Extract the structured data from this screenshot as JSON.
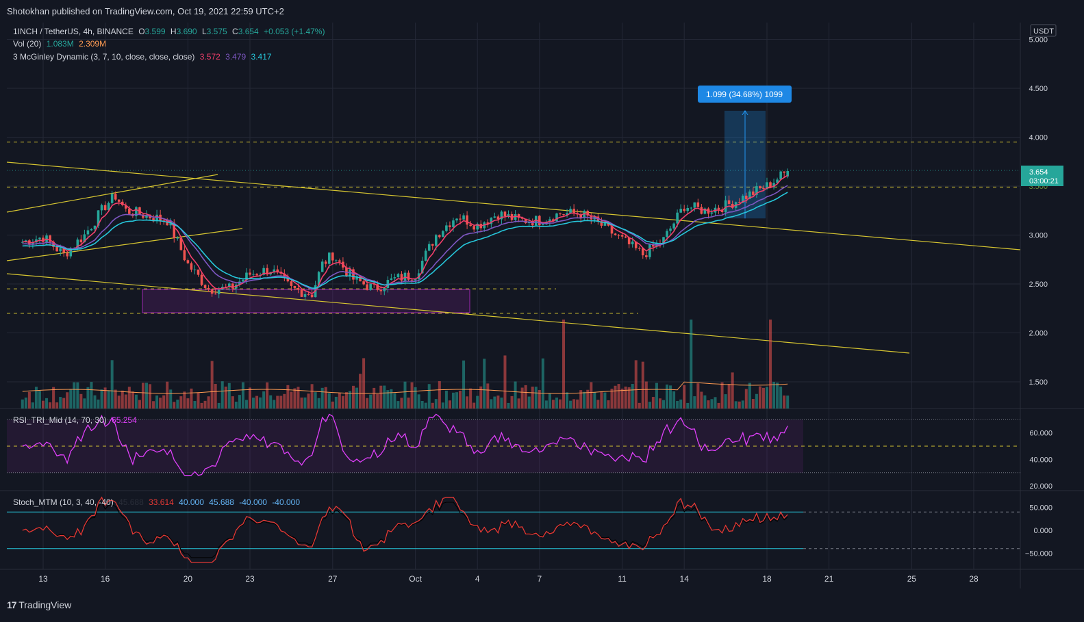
{
  "header": {
    "published": "Shotokhan published on TradingView.com, Oct 19, 2021 22:59 UTC+2"
  },
  "footer": {
    "brand": "TradingView"
  },
  "colors": {
    "bg": "#131722",
    "grid": "#242836",
    "up": "#26a69a",
    "down": "#ef5350",
    "yellow": "#d6c531",
    "rsi": "#e040fb",
    "mg1": "#f23f6b",
    "mg2": "#7e57c2",
    "mg3": "#26c6da",
    "stochK": "#e53935",
    "stochD": "#000000"
  },
  "legend": {
    "symbol": "1INCH / TetherUS, 4h, BINANCE",
    "o_label": "O",
    "o": "3.599",
    "h_label": "H",
    "h": "3.690",
    "l_label": "L",
    "l": "3.575",
    "c_label": "C",
    "c": "3.654",
    "change": "+0.053 (+1.47%)",
    "vol_label": "Vol (20)",
    "vol1": "1.083M",
    "vol2": "2.309M",
    "mg_label": "3 McGinley Dynamic (3, 7, 10, close, close, close)",
    "mg1": "3.572",
    "mg2": "3.479",
    "mg3": "3.417",
    "rsi_label": "RSI_TRI_Mid (14, 70, 30)",
    "rsi_val": "65.254",
    "stoch_label": "Stoch_MTM (10, 3, 40, -40)",
    "stoch_v0": "45.688",
    "stoch_v1": "33.614",
    "stoch_v2": "40.000",
    "stoch_v3": "45.688",
    "stoch_v4": "-40.000",
    "stoch_v5": "-40.000"
  },
  "measure_label": "1.099 (34.68%) 1099",
  "price_scale": {
    "currency": "USDT",
    "current_price": "3.654",
    "countdown": "03:00:21",
    "ticks": [
      "5.000",
      "4.500",
      "4.000",
      "3.000",
      "2.500",
      "2.000",
      "1.500"
    ],
    "hidden_tick": "3.500"
  },
  "rsi_scale": [
    "60.000",
    "40.000",
    "20.000"
  ],
  "stoch_scale": [
    "50.000",
    "0.000",
    "−50.000"
  ],
  "time_axis": [
    "13",
    "16",
    "20",
    "23",
    "27",
    "Oct",
    "4",
    "7",
    "11",
    "14",
    "18",
    "21",
    "25",
    "28"
  ],
  "chart_data": {
    "type": "candlestick",
    "symbol": "1INCH / TetherUS",
    "interval": "4h",
    "exchange": "BINANCE",
    "ylim": [
      1.2,
      5.1
    ],
    "y_ticks": [
      1.5,
      2.0,
      2.5,
      3.0,
      3.5,
      4.0,
      4.5,
      5.0
    ],
    "x_labels": [
      "13",
      "16",
      "20",
      "23",
      "27",
      "Oct",
      "4",
      "7",
      "11",
      "14",
      "18",
      "21",
      "25",
      "28"
    ],
    "close_path": [
      [
        "Sep 12",
        2.93
      ],
      [
        "Sep 13",
        2.98
      ],
      [
        "Sep 14",
        2.8
      ],
      [
        "Sep 15",
        3.0
      ],
      [
        "Sep 16",
        3.3
      ],
      [
        "Sep 16.5",
        3.4
      ],
      [
        "Sep 17",
        3.25
      ],
      [
        "Sep 18",
        3.2
      ],
      [
        "Sep 19",
        3.15
      ],
      [
        "Sep 20",
        2.7
      ],
      [
        "Sep 21",
        2.45
      ],
      [
        "Sep 22",
        2.45
      ],
      [
        "Sep 23",
        2.6
      ],
      [
        "Sep 24",
        2.65
      ],
      [
        "Sep 25",
        2.45
      ],
      [
        "Sep 26",
        2.4
      ],
      [
        "Sep 26.5",
        2.7
      ],
      [
        "Sep 27",
        2.8
      ],
      [
        "Sep 28",
        2.55
      ],
      [
        "Sep 29",
        2.45
      ],
      [
        "Sep 30",
        2.55
      ],
      [
        "Oct 1",
        2.6
      ],
      [
        "Oct 2",
        3.0
      ],
      [
        "Oct 3",
        3.2
      ],
      [
        "Oct 4",
        3.1
      ],
      [
        "Oct 5",
        3.22
      ],
      [
        "Oct 6",
        3.15
      ],
      [
        "Oct 7",
        3.15
      ],
      [
        "Oct 8",
        3.22
      ],
      [
        "Oct 9",
        3.22
      ],
      [
        "Oct 10",
        3.1
      ],
      [
        "Oct 11",
        2.95
      ],
      [
        "Oct 12",
        2.8
      ],
      [
        "Oct 13",
        2.95
      ],
      [
        "Oct 14",
        3.3
      ],
      [
        "Oct 15",
        3.25
      ],
      [
        "Oct 16",
        3.3
      ],
      [
        "Oct 17",
        3.4
      ],
      [
        "Oct 18",
        3.5
      ],
      [
        "Oct 19",
        3.654
      ]
    ],
    "levels": [
      3.95,
      3.49,
      2.45,
      2.2
    ],
    "measure": {
      "from": 3.17,
      "to": 4.27,
      "label": "1.099 (34.68%) 1099"
    },
    "mcginley": {
      "mg1": 3.572,
      "mg2": 3.479,
      "mg3": 3.417
    },
    "volume": {
      "vol20": "1.083M",
      "last": "2.309M"
    },
    "rsi": {
      "last": 65.254,
      "upper": 70,
      "lower": 30,
      "ticks": [
        60,
        40,
        20
      ]
    },
    "stoch_mtm": {
      "upper": 40,
      "lower": -40,
      "ticks": [
        50,
        0,
        -50
      ]
    }
  }
}
